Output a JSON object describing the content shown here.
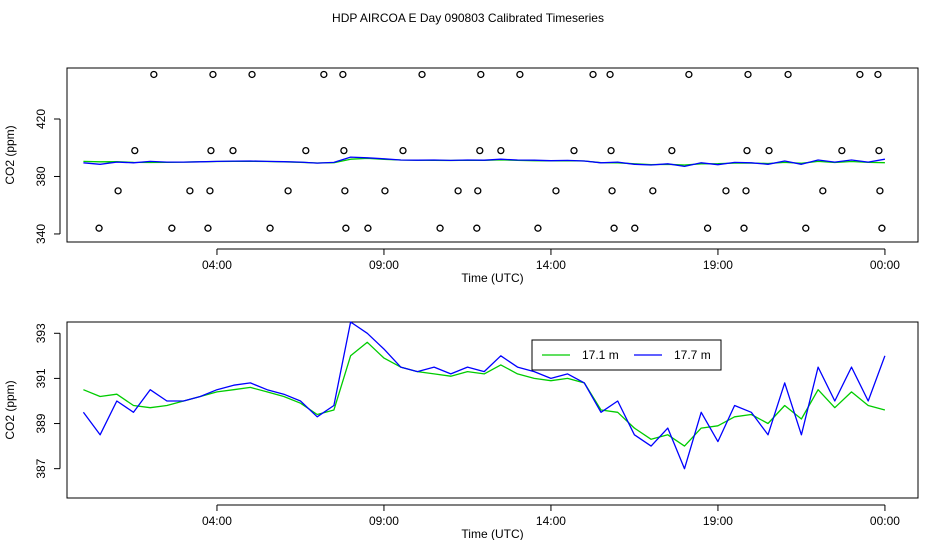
{
  "title": "HDP AIRCOA E  Day 090803  Calibrated Timeseries",
  "chart_data": [
    {
      "type": "line",
      "x_label": "Time (UTC)",
      "y_label": "CO2 (ppm)",
      "x": [
        0,
        0.5,
        1,
        1.5,
        2,
        2.5,
        3,
        3.5,
        4,
        4.5,
        5,
        5.5,
        6,
        6.5,
        7,
        7.5,
        8,
        8.5,
        9,
        9.5,
        10,
        10.5,
        11,
        11.5,
        12,
        12.5,
        13,
        13.5,
        14,
        14.5,
        15,
        15.5,
        16,
        16.5,
        17,
        17.5,
        18,
        18.5,
        19,
        19.5,
        20,
        20.5,
        21,
        21.5,
        22,
        22.5,
        23,
        23.5,
        24
      ],
      "xlim": [
        -0.49,
        24.99
      ],
      "xticks": [
        {
          "value": 4,
          "label": "04:00"
        },
        {
          "value": 9,
          "label": "09:00"
        },
        {
          "value": 14,
          "label": "14:00"
        },
        {
          "value": 19,
          "label": "19:00"
        },
        {
          "value": 24,
          "label": "00:00"
        }
      ],
      "ylim": [
        334.4,
        455.5
      ],
      "yticks": [
        340,
        380,
        420
      ],
      "series": [
        {
          "color": "#00cc00",
          "values": [
            390.5,
            390.2,
            390.3,
            389.8,
            389.7,
            389.8,
            390,
            390.2,
            390.4,
            390.5,
            390.6,
            390.4,
            390.2,
            389.9,
            389.4,
            389.6,
            392.0,
            392.6,
            391.9,
            391.5,
            391.3,
            391.2,
            391.1,
            391.3,
            391.2,
            391.6,
            391.2,
            391.0,
            390.9,
            391.0,
            390.8,
            389.6,
            389.5,
            388.8,
            388.3,
            388.5,
            388.0,
            388.8,
            388.9,
            389.3,
            389.4,
            389.0,
            389.8,
            389.2,
            390.5,
            389.7,
            390.4,
            389.8,
            389.6
          ]
        },
        {
          "color": "#0000ff",
          "values": [
            389.5,
            388.5,
            390,
            389.5,
            390.5,
            390,
            390,
            390.2,
            390.5,
            390.7,
            390.8,
            390.5,
            390.3,
            390,
            389.3,
            389.8,
            393.5,
            393,
            392.3,
            391.5,
            391.3,
            391.5,
            391.2,
            391.5,
            391.3,
            392,
            391.5,
            391.3,
            391,
            391.2,
            390.8,
            389.5,
            390,
            388.5,
            388,
            388.8,
            387,
            389.5,
            388.2,
            389.8,
            389.5,
            388.5,
            390.8,
            388.5,
            391.5,
            390,
            391.5,
            390,
            392
          ]
        },
        {
          "type": "scatter",
          "color": "#000000",
          "x": [
            2.11,
            3.88,
            5.05,
            7.2,
            7.77,
            10.14,
            11.9,
            13.07,
            15.26,
            15.77,
            18.13,
            19.9,
            21.1,
            23.25,
            23.79,
            1.54,
            3.82,
            4.48,
            6.66,
            7.8,
            9.57,
            11.87,
            12.5,
            14.69,
            15.8,
            17.62,
            19.87,
            20.53,
            22.71,
            23.82,
            1.04,
            3.19,
            3.79,
            6.13,
            7.83,
            9.03,
            11.22,
            11.81,
            14.15,
            15.83,
            17.05,
            19.24,
            19.84,
            22.14,
            23.85,
            0.47,
            2.65,
            3.73,
            5.59,
            7.86,
            8.52,
            10.68,
            11.78,
            13.61,
            15.89,
            16.51,
            18.69,
            19.78,
            21.63,
            23.91
          ],
          "values": [
            451,
            451,
            451,
            451,
            451,
            451,
            451,
            451,
            451,
            451,
            451,
            451,
            451,
            451,
            451,
            398,
            398,
            398,
            398,
            398,
            398,
            398,
            398,
            398,
            398,
            398,
            398,
            398,
            398,
            398,
            370,
            370,
            370,
            370,
            370,
            370,
            370,
            370,
            370,
            370,
            370,
            370,
            370,
            370,
            370,
            344,
            344,
            344,
            344,
            344,
            344,
            344,
            344,
            344,
            344,
            344,
            344,
            344,
            344,
            344
          ]
        }
      ]
    },
    {
      "type": "line",
      "x_label": "Time (UTC)",
      "y_label": "CO2 (ppm)",
      "legend": "top",
      "x": [
        0,
        0.5,
        1,
        1.5,
        2,
        2.5,
        3,
        3.5,
        4,
        4.5,
        5,
        5.5,
        6,
        6.5,
        7,
        7.5,
        8,
        8.5,
        9,
        9.5,
        10,
        10.5,
        11,
        11.5,
        12,
        12.5,
        13,
        13.5,
        14,
        14.5,
        15,
        15.5,
        16,
        16.5,
        17,
        17.5,
        18,
        18.5,
        19,
        19.5,
        20,
        20.5,
        21,
        21.5,
        22,
        22.5,
        23,
        23.5,
        24
      ],
      "xlim": [
        -0.49,
        24.99
      ],
      "xticks": [
        {
          "value": 4,
          "label": "04:00"
        },
        {
          "value": 9,
          "label": "09:00"
        },
        {
          "value": 14,
          "label": "14:00"
        },
        {
          "value": 19,
          "label": "19:00"
        },
        {
          "value": 24,
          "label": "00:00"
        }
      ],
      "ylim": [
        385.7,
        393.5
      ],
      "yticks": [
        387,
        389,
        391,
        393
      ],
      "series": [
        {
          "name": "17.1 m",
          "color": "#00cc00",
          "values": [
            390.5,
            390.2,
            390.3,
            389.8,
            389.7,
            389.8,
            390,
            390.2,
            390.4,
            390.5,
            390.6,
            390.4,
            390.2,
            389.9,
            389.4,
            389.6,
            392.0,
            392.6,
            391.9,
            391.5,
            391.3,
            391.2,
            391.1,
            391.3,
            391.2,
            391.6,
            391.2,
            391.0,
            390.9,
            391.0,
            390.8,
            389.6,
            389.5,
            388.8,
            388.3,
            388.5,
            388.0,
            388.8,
            388.9,
            389.3,
            389.4,
            389.0,
            389.8,
            389.2,
            390.5,
            389.7,
            390.4,
            389.8,
            389.6
          ]
        },
        {
          "name": "17.7 m",
          "color": "#0000ff",
          "values": [
            389.5,
            388.5,
            390,
            389.5,
            390.5,
            390,
            390,
            390.2,
            390.5,
            390.7,
            390.8,
            390.5,
            390.3,
            390,
            389.3,
            389.8,
            393.5,
            393,
            392.3,
            391.5,
            391.3,
            391.5,
            391.2,
            391.5,
            391.3,
            392,
            391.5,
            391.3,
            391,
            391.2,
            390.8,
            389.5,
            390,
            388.5,
            388,
            388.8,
            387,
            389.5,
            388.2,
            389.8,
            389.5,
            388.5,
            390.8,
            388.5,
            391.5,
            390,
            391.5,
            390,
            392
          ]
        }
      ]
    }
  ]
}
